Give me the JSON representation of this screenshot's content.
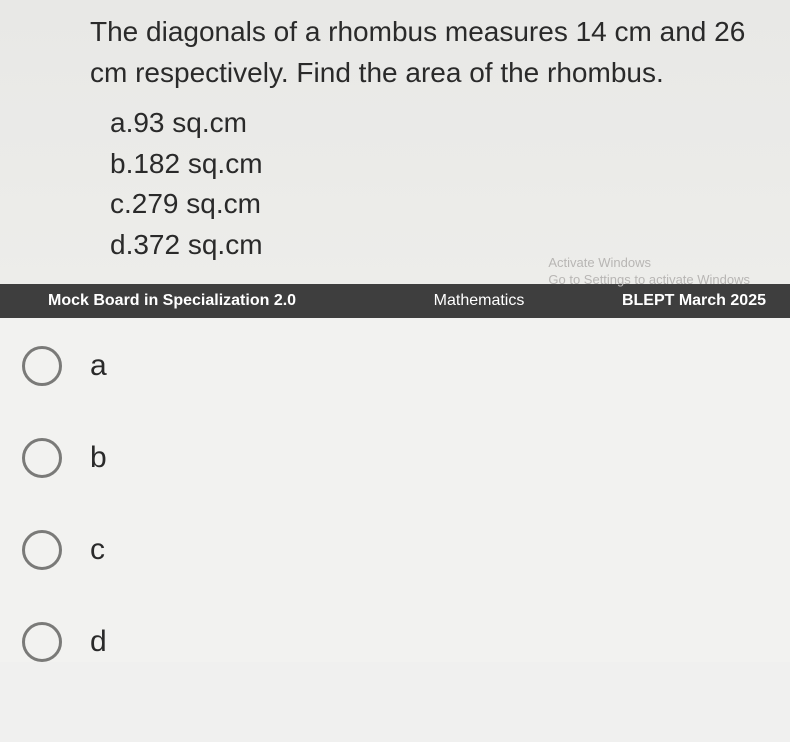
{
  "question": {
    "text": "The diagonals of a rhombus measures 14 cm and 26 cm respectively. Find the area of the rhombus.",
    "choices": [
      {
        "letter": "a",
        "text": "a.93 sq.cm"
      },
      {
        "letter": "b",
        "text": "b.182 sq.cm"
      },
      {
        "letter": "c",
        "text": "c.279 sq.cm"
      },
      {
        "letter": "d",
        "text": "d.372 sq.cm"
      }
    ]
  },
  "watermark": {
    "line1": "Activate Windows",
    "line2": "Go to Settings to activate Windows"
  },
  "info_bar": {
    "left": "Mock Board in Specialization 2.0",
    "center": "Mathematics",
    "right": "BLEPT March 2025"
  },
  "answer_options": [
    {
      "value": "a",
      "label": "a"
    },
    {
      "value": "b",
      "label": "b"
    },
    {
      "value": "c",
      "label": "c"
    },
    {
      "value": "d",
      "label": "d"
    }
  ],
  "colors": {
    "bar_bg": "#3e3e3e",
    "text": "#2a2a2a",
    "radio_border": "#7a7a78"
  }
}
